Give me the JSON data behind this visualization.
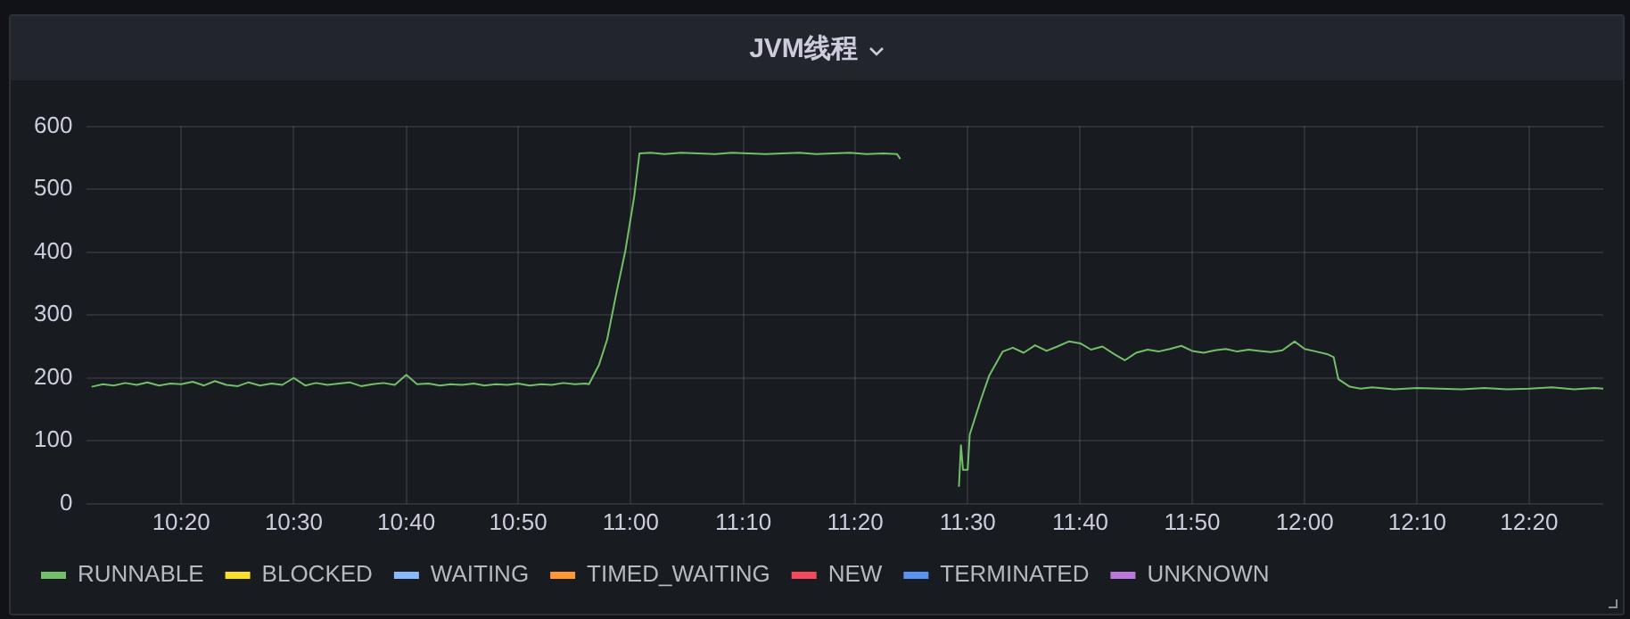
{
  "chart_data": {
    "type": "line",
    "title": "JVM线程",
    "x": [
      10.2,
      10.217,
      10.233,
      10.25,
      10.267,
      10.283,
      10.3,
      10.317,
      10.333,
      10.35,
      10.367,
      10.383,
      10.4,
      10.417,
      10.433,
      10.45,
      10.467,
      10.483,
      10.5,
      10.517,
      10.533,
      10.55,
      10.567,
      10.583,
      10.6,
      10.617,
      10.633,
      10.65,
      10.667,
      10.683,
      10.7,
      10.717,
      10.733,
      10.75,
      10.767,
      10.783,
      10.8,
      10.817,
      10.833,
      10.85,
      10.867,
      10.883,
      10.9,
      10.917,
      10.933,
      10.938,
      10.953,
      10.965,
      10.978,
      10.992,
      11.005,
      11.013,
      11.03,
      11.05,
      11.075,
      11.1,
      11.125,
      11.15,
      11.175,
      11.2,
      11.225,
      11.25,
      11.275,
      11.3,
      11.325,
      11.35,
      11.375,
      11.395,
      11.4,
      11.45,
      11.487,
      11.49,
      11.493,
      11.5,
      11.503,
      11.52,
      11.532,
      11.552,
      11.567,
      11.583,
      11.6,
      11.617,
      11.633,
      11.65,
      11.667,
      11.683,
      11.7,
      11.717,
      11.733,
      11.75,
      11.767,
      11.783,
      11.8,
      11.817,
      11.833,
      11.85,
      11.867,
      11.883,
      11.9,
      11.917,
      11.933,
      11.95,
      11.967,
      11.985,
      12,
      12.017,
      12.033,
      12.043,
      12.05,
      12.067,
      12.083,
      12.1,
      12.133,
      12.167,
      12.2,
      12.233,
      12.267,
      12.3,
      12.333,
      12.367,
      12.4,
      12.43,
      12.443
    ],
    "series": [
      {
        "name": "RUNNABLE",
        "color": "#73bf69",
        "values": [
          186,
          190,
          188,
          192,
          189,
          193,
          188,
          191,
          190,
          194,
          188,
          195,
          189,
          187,
          193,
          188,
          191,
          189,
          200,
          188,
          192,
          189,
          191,
          193,
          187,
          190,
          192,
          189,
          205,
          190,
          191,
          188,
          190,
          189,
          191,
          188,
          190,
          189,
          191,
          188,
          190,
          189,
          192,
          190,
          191,
          190,
          221,
          261,
          331,
          402,
          487,
          557,
          558,
          556,
          558,
          557,
          556,
          558,
          557,
          556,
          557,
          558,
          556,
          557,
          558,
          556,
          557,
          556,
          548,
          null,
          27,
          93,
          54,
          54,
          110,
          167,
          204,
          242,
          248,
          240,
          252,
          243,
          250,
          258,
          255,
          245,
          250,
          238,
          228,
          240,
          245,
          242,
          246,
          251,
          243,
          240,
          244,
          246,
          242,
          245,
          243,
          241,
          244,
          258,
          246,
          242,
          238,
          233,
          198,
          186,
          183,
          185,
          182,
          184,
          183,
          182,
          184,
          182,
          183,
          185,
          182,
          184,
          183
        ]
      },
      {
        "name": "BLOCKED",
        "color": "#fade2a",
        "values": [
          null,
          null,
          null,
          null,
          null,
          null,
          null,
          null,
          null,
          null,
          null,
          null,
          null,
          null,
          null,
          null,
          null,
          null,
          null,
          null,
          null,
          null,
          null,
          null,
          null,
          null,
          null,
          null,
          null,
          null,
          null,
          null,
          null,
          null,
          null,
          null,
          null,
          null,
          null,
          null,
          null,
          null,
          null,
          null,
          null,
          null,
          null,
          null,
          null,
          null,
          null,
          null,
          null,
          null,
          null,
          null,
          null,
          null,
          null,
          null,
          null,
          null,
          null,
          null,
          null,
          null,
          null,
          null,
          null,
          null,
          null,
          null,
          null,
          null,
          null,
          null,
          null,
          null,
          null,
          null,
          null,
          null,
          null,
          null,
          null,
          null,
          null,
          null,
          null,
          null,
          null,
          null,
          null,
          null,
          null,
          null,
          null,
          null,
          null,
          null,
          null,
          null,
          null,
          null,
          null,
          null,
          null,
          null,
          null,
          null,
          null,
          null,
          null,
          null,
          null,
          null,
          null,
          null,
          null,
          null,
          null,
          null,
          null
        ]
      },
      {
        "name": "WAITING",
        "color": "#8ab8ff",
        "values": [
          null,
          null,
          null,
          null,
          null,
          null,
          null,
          null,
          null,
          null,
          null,
          null,
          null,
          null,
          null,
          null,
          null,
          null,
          null,
          null,
          null,
          null,
          null,
          null,
          null,
          null,
          null,
          null,
          null,
          null,
          null,
          null,
          null,
          null,
          null,
          null,
          null,
          null,
          null,
          null,
          null,
          null,
          null,
          null,
          null,
          null,
          null,
          null,
          null,
          null,
          null,
          null,
          null,
          null,
          null,
          null,
          null,
          null,
          null,
          null,
          null,
          null,
          null,
          null,
          null,
          null,
          null,
          null,
          null,
          null,
          null,
          null,
          null,
          null,
          null,
          null,
          null,
          null,
          null,
          null,
          null,
          null,
          null,
          null,
          null,
          null,
          null,
          null,
          null,
          null,
          null,
          null,
          null,
          null,
          null,
          null,
          null,
          null,
          null,
          null,
          null,
          null,
          null,
          null,
          null,
          null,
          null,
          null,
          null,
          null,
          null,
          null,
          null,
          null,
          null,
          null,
          null,
          null,
          null,
          null,
          null,
          null,
          null
        ]
      },
      {
        "name": "TIMED_WAITING",
        "color": "#ff9830",
        "values": [
          null,
          null,
          null,
          null,
          null,
          null,
          null,
          null,
          null,
          null,
          null,
          null,
          null,
          null,
          null,
          null,
          null,
          null,
          null,
          null,
          null,
          null,
          null,
          null,
          null,
          null,
          null,
          null,
          null,
          null,
          null,
          null,
          null,
          null,
          null,
          null,
          null,
          null,
          null,
          null,
          null,
          null,
          null,
          null,
          null,
          null,
          null,
          null,
          null,
          null,
          null,
          null,
          null,
          null,
          null,
          null,
          null,
          null,
          null,
          null,
          null,
          null,
          null,
          null,
          null,
          null,
          null,
          null,
          null,
          null,
          null,
          null,
          null,
          null,
          null,
          null,
          null,
          null,
          null,
          null,
          null,
          null,
          null,
          null,
          null,
          null,
          null,
          null,
          null,
          null,
          null,
          null,
          null,
          null,
          null,
          null,
          null,
          null,
          null,
          null,
          null,
          null,
          null,
          null,
          null,
          null,
          null,
          null,
          null,
          null,
          null,
          null,
          null,
          null,
          null,
          null,
          null,
          null,
          null,
          null,
          null,
          null,
          null
        ]
      },
      {
        "name": "NEW",
        "color": "#f2495c",
        "values": [
          null,
          null,
          null,
          null,
          null,
          null,
          null,
          null,
          null,
          null,
          null,
          null,
          null,
          null,
          null,
          null,
          null,
          null,
          null,
          null,
          null,
          null,
          null,
          null,
          null,
          null,
          null,
          null,
          null,
          null,
          null,
          null,
          null,
          null,
          null,
          null,
          null,
          null,
          null,
          null,
          null,
          null,
          null,
          null,
          null,
          null,
          null,
          null,
          null,
          null,
          null,
          null,
          null,
          null,
          null,
          null,
          null,
          null,
          null,
          null,
          null,
          null,
          null,
          null,
          null,
          null,
          null,
          null,
          null,
          null,
          null,
          null,
          null,
          null,
          null,
          null,
          null,
          null,
          null,
          null,
          null,
          null,
          null,
          null,
          null,
          null,
          null,
          null,
          null,
          null,
          null,
          null,
          null,
          null,
          null,
          null,
          null,
          null,
          null,
          null,
          null,
          null,
          null,
          null,
          null,
          null,
          null,
          null,
          null,
          null,
          null,
          null,
          null,
          null,
          null,
          null,
          null,
          null,
          null,
          null,
          null,
          null,
          null
        ]
      },
      {
        "name": "TERMINATED",
        "color": "#5794f2",
        "values": [
          null,
          null,
          null,
          null,
          null,
          null,
          null,
          null,
          null,
          null,
          null,
          null,
          null,
          null,
          null,
          null,
          null,
          null,
          null,
          null,
          null,
          null,
          null,
          null,
          null,
          null,
          null,
          null,
          null,
          null,
          null,
          null,
          null,
          null,
          null,
          null,
          null,
          null,
          null,
          null,
          null,
          null,
          null,
          null,
          null,
          null,
          null,
          null,
          null,
          null,
          null,
          null,
          null,
          null,
          null,
          null,
          null,
          null,
          null,
          null,
          null,
          null,
          null,
          null,
          null,
          null,
          null,
          null,
          null,
          null,
          null,
          null,
          null,
          null,
          null,
          null,
          null,
          null,
          null,
          null,
          null,
          null,
          null,
          null,
          null,
          null,
          null,
          null,
          null,
          null,
          null,
          null,
          null,
          null,
          null,
          null,
          null,
          null,
          null,
          null,
          null,
          null,
          null,
          null,
          null,
          null,
          null,
          null,
          null,
          null,
          null,
          null,
          null,
          null,
          null,
          null,
          null,
          null,
          null,
          null,
          null,
          null,
          null
        ]
      },
      {
        "name": "UNKNOWN",
        "color": "#b877d9",
        "values": [
          null,
          null,
          null,
          null,
          null,
          null,
          null,
          null,
          null,
          null,
          null,
          null,
          null,
          null,
          null,
          null,
          null,
          null,
          null,
          null,
          null,
          null,
          null,
          null,
          null,
          null,
          null,
          null,
          null,
          null,
          null,
          null,
          null,
          null,
          null,
          null,
          null,
          null,
          null,
          null,
          null,
          null,
          null,
          null,
          null,
          null,
          null,
          null,
          null,
          null,
          null,
          null,
          null,
          null,
          null,
          null,
          null,
          null,
          null,
          null,
          null,
          null,
          null,
          null,
          null,
          null,
          null,
          null,
          null,
          null,
          null,
          null,
          null,
          null,
          null,
          null,
          null,
          null,
          null,
          null,
          null,
          null,
          null,
          null,
          null,
          null,
          null,
          null,
          null,
          null,
          null,
          null,
          null,
          null,
          null,
          null,
          null,
          null,
          null,
          null,
          null,
          null,
          null,
          null,
          null,
          null,
          null,
          null,
          null,
          null,
          null,
          null,
          null,
          null,
          null,
          null,
          null,
          null,
          null,
          null,
          null,
          null,
          null
        ]
      }
    ],
    "xlim": [
      10.193,
      12.443
    ],
    "xticks": [
      {
        "value": 10.333,
        "label": "10:20"
      },
      {
        "value": 10.5,
        "label": "10:30"
      },
      {
        "value": 10.667,
        "label": "10:40"
      },
      {
        "value": 10.833,
        "label": "10:50"
      },
      {
        "value": 11,
        "label": "11:00"
      },
      {
        "value": 11.167,
        "label": "11:10"
      },
      {
        "value": 11.333,
        "label": "11:20"
      },
      {
        "value": 11.5,
        "label": "11:30"
      },
      {
        "value": 11.667,
        "label": "11:40"
      },
      {
        "value": 11.833,
        "label": "11:50"
      },
      {
        "value": 12,
        "label": "12:00"
      },
      {
        "value": 12.167,
        "label": "12:10"
      },
      {
        "value": 12.333,
        "label": "12:20"
      }
    ],
    "ylim": [
      0,
      600
    ],
    "yticks": [
      0,
      100,
      200,
      300,
      400,
      500,
      600
    ],
    "grid": true,
    "legend": "bottom",
    "marker": "none",
    "line_style": "solid"
  }
}
